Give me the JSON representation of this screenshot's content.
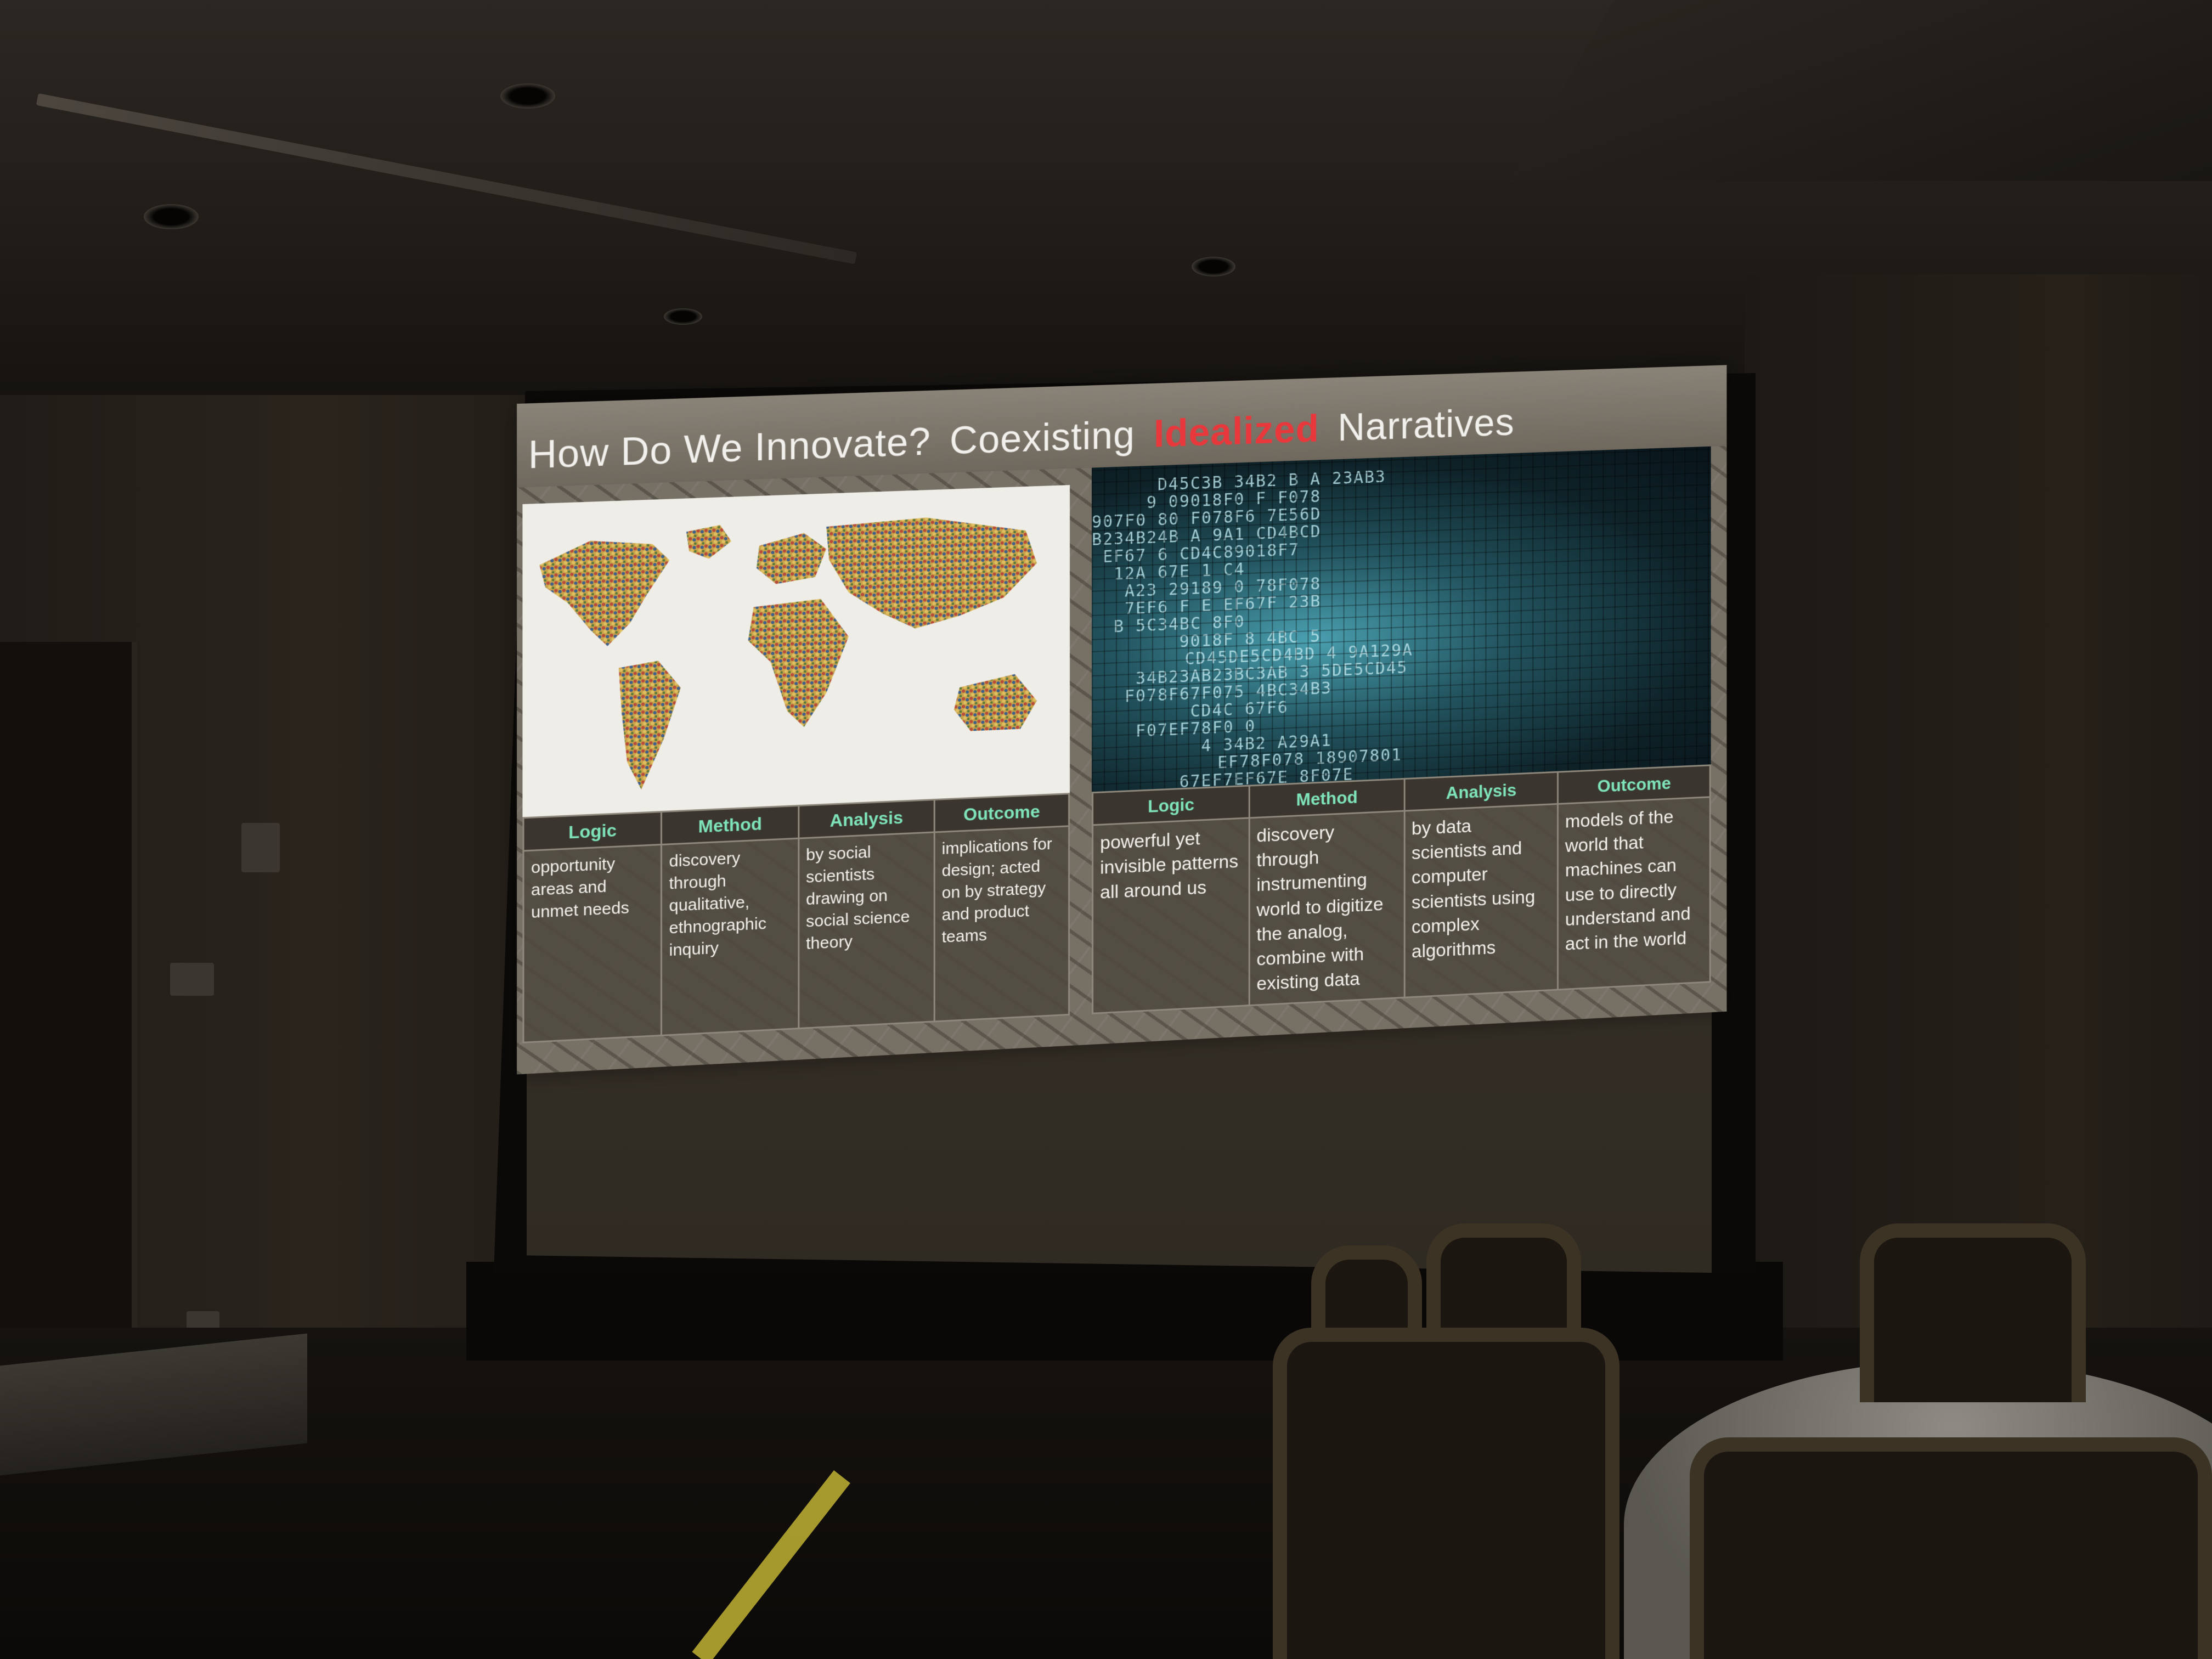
{
  "slide": {
    "title": {
      "part1": "How Do We Innovate?",
      "part2": "Coexisting",
      "accent": "Idealized",
      "part3": "Narratives"
    },
    "colors": {
      "accent": "#e8383c",
      "header_text": "#7fe4bb"
    },
    "left_panel": {
      "headers": [
        "Logic",
        "Method",
        "Analysis",
        "Outcome"
      ],
      "cells": [
        "opportunity areas and unmet needs",
        "discovery through qualitative, ethnographic inquiry",
        "by social scientists drawing on social science theory",
        "implications for design; acted on by strategy and product teams"
      ]
    },
    "right_panel": {
      "image_text_lines": [
        "D45C3B 34B2 B A 23AB3",
        "9 09018F0 F F078",
        "907F0 80 F078F6 7E56D",
        "B234B24B A 9A1 CD4BCD",
        "EF67 6 CD4C89018F7",
        "12A 67E 1 C4",
        "A23 29189 0 78F078",
        "7EF6 F E EF67F 23B",
        "B 5C34BC 8F0",
        "9018F 8 4BC 5",
        "CD45DE5CD4BD 4 9A129A",
        "34B23AB23BC3AB 3 5DE5CD45",
        "F078F67F075 4BC34B3",
        "CD4C 67F6",
        "F07EF78F0 0",
        "4 34B2 A29A1",
        "EF78F078 18907801",
        "67EF7EF67E 8F07E"
      ],
      "headers": [
        "Logic",
        "Method",
        "Analysis",
        "Outcome"
      ],
      "cells": [
        "powerful yet invisible patterns all around us",
        "discovery through instrumenting world to digitize the analog, combine with existing data",
        "by data scientists and computer scientists using complex algorithms",
        "models of the world that machines can use to directly understand and act in the world"
      ]
    }
  }
}
